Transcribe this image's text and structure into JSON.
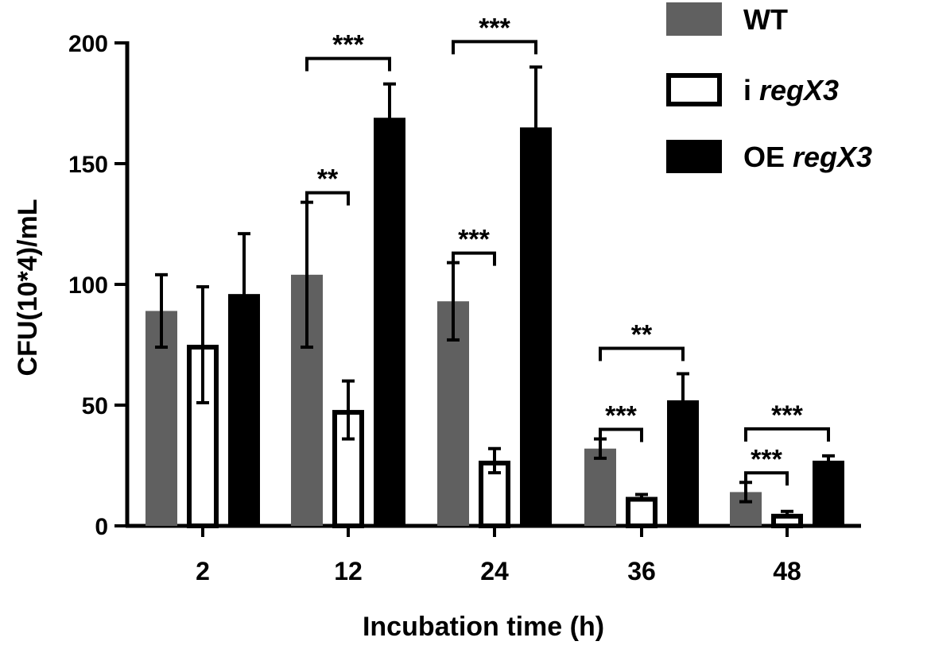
{
  "chart_data": {
    "type": "bar",
    "title": "",
    "xlabel": "Incubation time (h)",
    "ylabel": "CFU(10*4)/mL",
    "ylim": [
      0,
      200
    ],
    "yticks": [
      0,
      50,
      100,
      150,
      200
    ],
    "categories": [
      "2",
      "12",
      "24",
      "36",
      "48"
    ],
    "series": [
      {
        "name": "WT",
        "name_prefix": "",
        "name_italic": "WT",
        "style": "gray",
        "color": "#606060",
        "values": [
          89,
          104,
          93,
          32,
          14
        ],
        "errors": [
          15,
          30,
          16,
          4,
          4
        ]
      },
      {
        "name": "i regX3",
        "name_prefix": "i",
        "name_italic": "regX3",
        "style": "open",
        "color": "#ffffff",
        "values": [
          75,
          48,
          27,
          12,
          5
        ],
        "errors": [
          24,
          12,
          5,
          1,
          1
        ]
      },
      {
        "name": "OE regX3",
        "name_prefix": "OE",
        "name_italic": "regX3",
        "style": "black",
        "color": "#000000",
        "values": [
          96,
          169,
          165,
          52,
          27
        ],
        "errors": [
          25,
          14,
          25,
          11,
          2
        ]
      }
    ],
    "significance": [
      {
        "category": "12",
        "from": 0,
        "to": 2,
        "label": "***"
      },
      {
        "category": "12",
        "from": 0,
        "to": 1,
        "label": "**"
      },
      {
        "category": "24",
        "from": 0,
        "to": 2,
        "label": "***"
      },
      {
        "category": "24",
        "from": 0,
        "to": 1,
        "label": "***"
      },
      {
        "category": "36",
        "from": 0,
        "to": 2,
        "label": "**"
      },
      {
        "category": "36",
        "from": 0,
        "to": 1,
        "label": "***"
      },
      {
        "category": "48",
        "from": 0,
        "to": 2,
        "label": "***"
      },
      {
        "category": "48",
        "from": 0,
        "to": 1,
        "label": "***"
      }
    ],
    "legend_position": "top-right",
    "grid": false
  }
}
